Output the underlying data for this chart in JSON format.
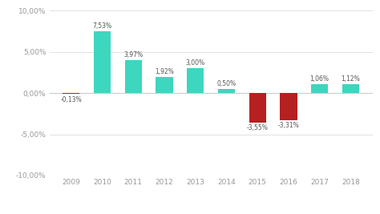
{
  "years": [
    2009,
    2010,
    2011,
    2012,
    2013,
    2014,
    2015,
    2016,
    2017,
    2018
  ],
  "values": [
    -0.13,
    7.53,
    3.97,
    1.92,
    3.0,
    0.5,
    -3.55,
    -3.31,
    1.06,
    1.12
  ],
  "labels": [
    "-0,13%",
    "7,53%",
    "3,97%",
    "1,92%",
    "3,00%",
    "0,50%",
    "-3,55%",
    "-3,31%",
    "1,06%",
    "1,12%"
  ],
  "positive_color": "#3dd6bf",
  "negative_color": "#b52020",
  "background_color": "#ffffff",
  "ylim": [
    -10,
    10
  ],
  "yticks": [
    -10,
    -5,
    0,
    5,
    10
  ],
  "ytick_labels": [
    "-10,00%",
    "-5,00%",
    "0,00%",
    "5,00%",
    "10,00%"
  ]
}
